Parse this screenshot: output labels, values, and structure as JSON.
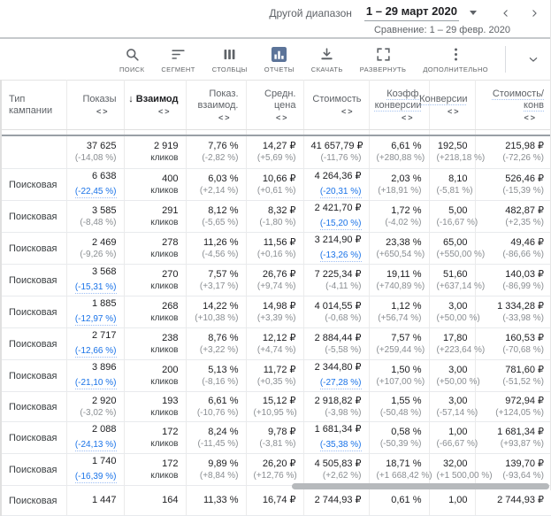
{
  "icons": {
    "sort_desc": "↓",
    "chart_toggle": "<>"
  },
  "topbar": {
    "range_label": "Другой диапазон",
    "date_value": "1 – 29 март 2020",
    "comparison": "Сравнение: 1 – 29 февр. 2020"
  },
  "toolbar": {
    "buttons": [
      {
        "name": "search",
        "label": "ПОИСК"
      },
      {
        "name": "segment",
        "label": "СЕГМЕНТ"
      },
      {
        "name": "columns",
        "label": "СТОЛБЦЫ"
      },
      {
        "name": "reports",
        "label": "ОТЧЕТЫ"
      },
      {
        "name": "download",
        "label": "СКАЧАТЬ"
      },
      {
        "name": "expand",
        "label": "РАЗВЕРНУТЬ"
      },
      {
        "name": "more",
        "label": "ДОПОЛНИТЕЛЬНО"
      }
    ]
  },
  "colors": {
    "accent_blue": "#1a73e8",
    "reports_icon": "#5c7499"
  },
  "table": {
    "columns": [
      {
        "label": "Тип кампании"
      },
      {
        "label": "Показы"
      },
      {
        "label": "Взаимод",
        "sorted": true
      },
      {
        "label": "Показ. взаимод."
      },
      {
        "label": "Средн. цена"
      },
      {
        "label": "Стоимость"
      },
      {
        "label": "Коэфф. конверсии",
        "hint": true
      },
      {
        "label": "Конверсии",
        "hint": true
      },
      {
        "label": "Стоимость/конв",
        "hint": true
      }
    ],
    "totals": {
      "type": "",
      "cells": [
        {
          "v": "37 625",
          "s": "(-14,08 %)"
        },
        {
          "v": "2 919",
          "s": "кликов",
          "unit": true
        },
        {
          "v": "7,76 %",
          "s": "(-2,82 %)"
        },
        {
          "v": "14,27 ₽",
          "s": "(+5,69 %)"
        },
        {
          "v": "41 657,79 ₽",
          "s": "(-11,76 %)"
        },
        {
          "v": "6,61 %",
          "s": "(+280,88 %)"
        },
        {
          "v": "192,50",
          "s": "(+218,18 %)"
        },
        {
          "v": "215,98 ₽",
          "s": "(-72,26 %)"
        }
      ]
    },
    "rows": [
      {
        "type": "Поисковая",
        "cells": [
          {
            "v": "6 638",
            "s": "(-22,45 %)",
            "hl": true
          },
          {
            "v": "400",
            "s": "кликов",
            "unit": true
          },
          {
            "v": "6,03 %",
            "s": "(+2,14 %)"
          },
          {
            "v": "10,66 ₽",
            "s": "(+0,61 %)"
          },
          {
            "v": "4 264,36 ₽",
            "s": "(-20,31 %)",
            "hl": true
          },
          {
            "v": "2,03 %",
            "s": "(+18,91 %)"
          },
          {
            "v": "8,10",
            "s": "(-5,81 %)"
          },
          {
            "v": "526,46 ₽",
            "s": "(-15,39 %)"
          }
        ]
      },
      {
        "type": "Поисковая",
        "cells": [
          {
            "v": "3 585",
            "s": "(-8,48 %)"
          },
          {
            "v": "291",
            "s": "кликов",
            "unit": true
          },
          {
            "v": "8,12 %",
            "s": "(-5,65 %)"
          },
          {
            "v": "8,32 ₽",
            "s": "(-1,80 %)"
          },
          {
            "v": "2 421,70 ₽",
            "s": "(-15,20 %)",
            "hl": true
          },
          {
            "v": "1,72 %",
            "s": "(-4,02 %)"
          },
          {
            "v": "5,00",
            "s": "(-16,67 %)"
          },
          {
            "v": "482,87 ₽",
            "s": "(+2,35 %)"
          }
        ]
      },
      {
        "type": "Поисковая",
        "cells": [
          {
            "v": "2 469",
            "s": "(-9,26 %)"
          },
          {
            "v": "278",
            "s": "кликов",
            "unit": true
          },
          {
            "v": "11,26 %",
            "s": "(-4,56 %)"
          },
          {
            "v": "11,56 ₽",
            "s": "(+0,16 %)"
          },
          {
            "v": "3 214,90 ₽",
            "s": "(-13,26 %)",
            "hl": true
          },
          {
            "v": "23,38 %",
            "s": "(+650,54 %)"
          },
          {
            "v": "65,00",
            "s": "(+550,00 %)"
          },
          {
            "v": "49,46 ₽",
            "s": "(-86,66 %)"
          }
        ]
      },
      {
        "type": "Поисковая",
        "cells": [
          {
            "v": "3 568",
            "s": "(-15,31 %)",
            "hl": true
          },
          {
            "v": "270",
            "s": "кликов",
            "unit": true
          },
          {
            "v": "7,57 %",
            "s": "(+3,17 %)"
          },
          {
            "v": "26,76 ₽",
            "s": "(+9,74 %)"
          },
          {
            "v": "7 225,34 ₽",
            "s": "(-4,11 %)"
          },
          {
            "v": "19,11 %",
            "s": "(+740,89 %)"
          },
          {
            "v": "51,60",
            "s": "(+637,14 %)"
          },
          {
            "v": "140,03 ₽",
            "s": "(-86,99 %)"
          }
        ]
      },
      {
        "type": "Поисковая",
        "cells": [
          {
            "v": "1 885",
            "s": "(-12,97 %)",
            "hl": true
          },
          {
            "v": "268",
            "s": "кликов",
            "unit": true
          },
          {
            "v": "14,22 %",
            "s": "(+10,38 %)"
          },
          {
            "v": "14,98 ₽",
            "s": "(+3,39 %)"
          },
          {
            "v": "4 014,55 ₽",
            "s": "(-0,68 %)"
          },
          {
            "v": "1,12 %",
            "s": "(+56,74 %)"
          },
          {
            "v": "3,00",
            "s": "(+50,00 %)"
          },
          {
            "v": "1 334,28 ₽",
            "s": "(-33,98 %)"
          }
        ]
      },
      {
        "type": "Поисковая",
        "cells": [
          {
            "v": "2 717",
            "s": "(-12,66 %)",
            "hl": true
          },
          {
            "v": "238",
            "s": "кликов",
            "unit": true
          },
          {
            "v": "8,76 %",
            "s": "(+3,22 %)"
          },
          {
            "v": "12,12 ₽",
            "s": "(+4,74 %)"
          },
          {
            "v": "2 884,44 ₽",
            "s": "(-5,58 %)"
          },
          {
            "v": "7,57 %",
            "s": "(+259,44 %)"
          },
          {
            "v": "17,80",
            "s": "(+223,64 %)"
          },
          {
            "v": "160,53 ₽",
            "s": "(-70,68 %)"
          }
        ]
      },
      {
        "type": "Поисковая",
        "cells": [
          {
            "v": "3 896",
            "s": "(-21,10 %)",
            "hl": true
          },
          {
            "v": "200",
            "s": "кликов",
            "unit": true
          },
          {
            "v": "5,13 %",
            "s": "(-8,16 %)"
          },
          {
            "v": "11,72 ₽",
            "s": "(+0,35 %)"
          },
          {
            "v": "2 344,80 ₽",
            "s": "(-27,28 %)",
            "hl": true
          },
          {
            "v": "1,50 %",
            "s": "(+107,00 %)"
          },
          {
            "v": "3,00",
            "s": "(+50,00 %)"
          },
          {
            "v": "781,60 ₽",
            "s": "(-51,52 %)"
          }
        ]
      },
      {
        "type": "Поисковая",
        "cells": [
          {
            "v": "2 920",
            "s": "(-3,02 %)"
          },
          {
            "v": "193",
            "s": "кликов",
            "unit": true
          },
          {
            "v": "6,61 %",
            "s": "(-10,76 %)"
          },
          {
            "v": "15,12 ₽",
            "s": "(+10,95 %)"
          },
          {
            "v": "2 918,82 ₽",
            "s": "(-3,98 %)"
          },
          {
            "v": "1,55 %",
            "s": "(-50,48 %)"
          },
          {
            "v": "3,00",
            "s": "(-57,14 %)"
          },
          {
            "v": "972,94 ₽",
            "s": "(+124,05 %)"
          }
        ]
      },
      {
        "type": "Поисковая",
        "cells": [
          {
            "v": "2 088",
            "s": "(-24,13 %)",
            "hl": true
          },
          {
            "v": "172",
            "s": "кликов",
            "unit": true
          },
          {
            "v": "8,24 %",
            "s": "(-11,45 %)"
          },
          {
            "v": "9,78 ₽",
            "s": "(-3,81 %)"
          },
          {
            "v": "1 681,34 ₽",
            "s": "(-35,38 %)",
            "hl": true
          },
          {
            "v": "0,58 %",
            "s": "(-50,39 %)"
          },
          {
            "v": "1,00",
            "s": "(-66,67 %)"
          },
          {
            "v": "1 681,34 ₽",
            "s": "(+93,87 %)"
          }
        ]
      },
      {
        "type": "Поисковая",
        "cells": [
          {
            "v": "1 740",
            "s": "(-16,39 %)",
            "hl": true
          },
          {
            "v": "172",
            "s": "кликов",
            "unit": true
          },
          {
            "v": "9,89 %",
            "s": "(+8,84 %)"
          },
          {
            "v": "26,20 ₽",
            "s": "(+12,76 %)"
          },
          {
            "v": "4 505,83 ₽",
            "s": "(+2,62 %)"
          },
          {
            "v": "18,71 %",
            "s": "(+1 668,42 %)"
          },
          {
            "v": "32,00",
            "s": "(+1 500,00 %)"
          },
          {
            "v": "139,70 ₽",
            "s": "(-93,64 %)"
          }
        ]
      },
      {
        "type": "Поисковая",
        "cells": [
          {
            "v": "1 447",
            "s": ""
          },
          {
            "v": "164",
            "s": ""
          },
          {
            "v": "11,33 %",
            "s": ""
          },
          {
            "v": "16,74 ₽",
            "s": ""
          },
          {
            "v": "2 744,93 ₽",
            "s": ""
          },
          {
            "v": "0,61 %",
            "s": ""
          },
          {
            "v": "1,00",
            "s": ""
          },
          {
            "v": "2 744,93 ₽",
            "s": ""
          }
        ]
      }
    ]
  }
}
